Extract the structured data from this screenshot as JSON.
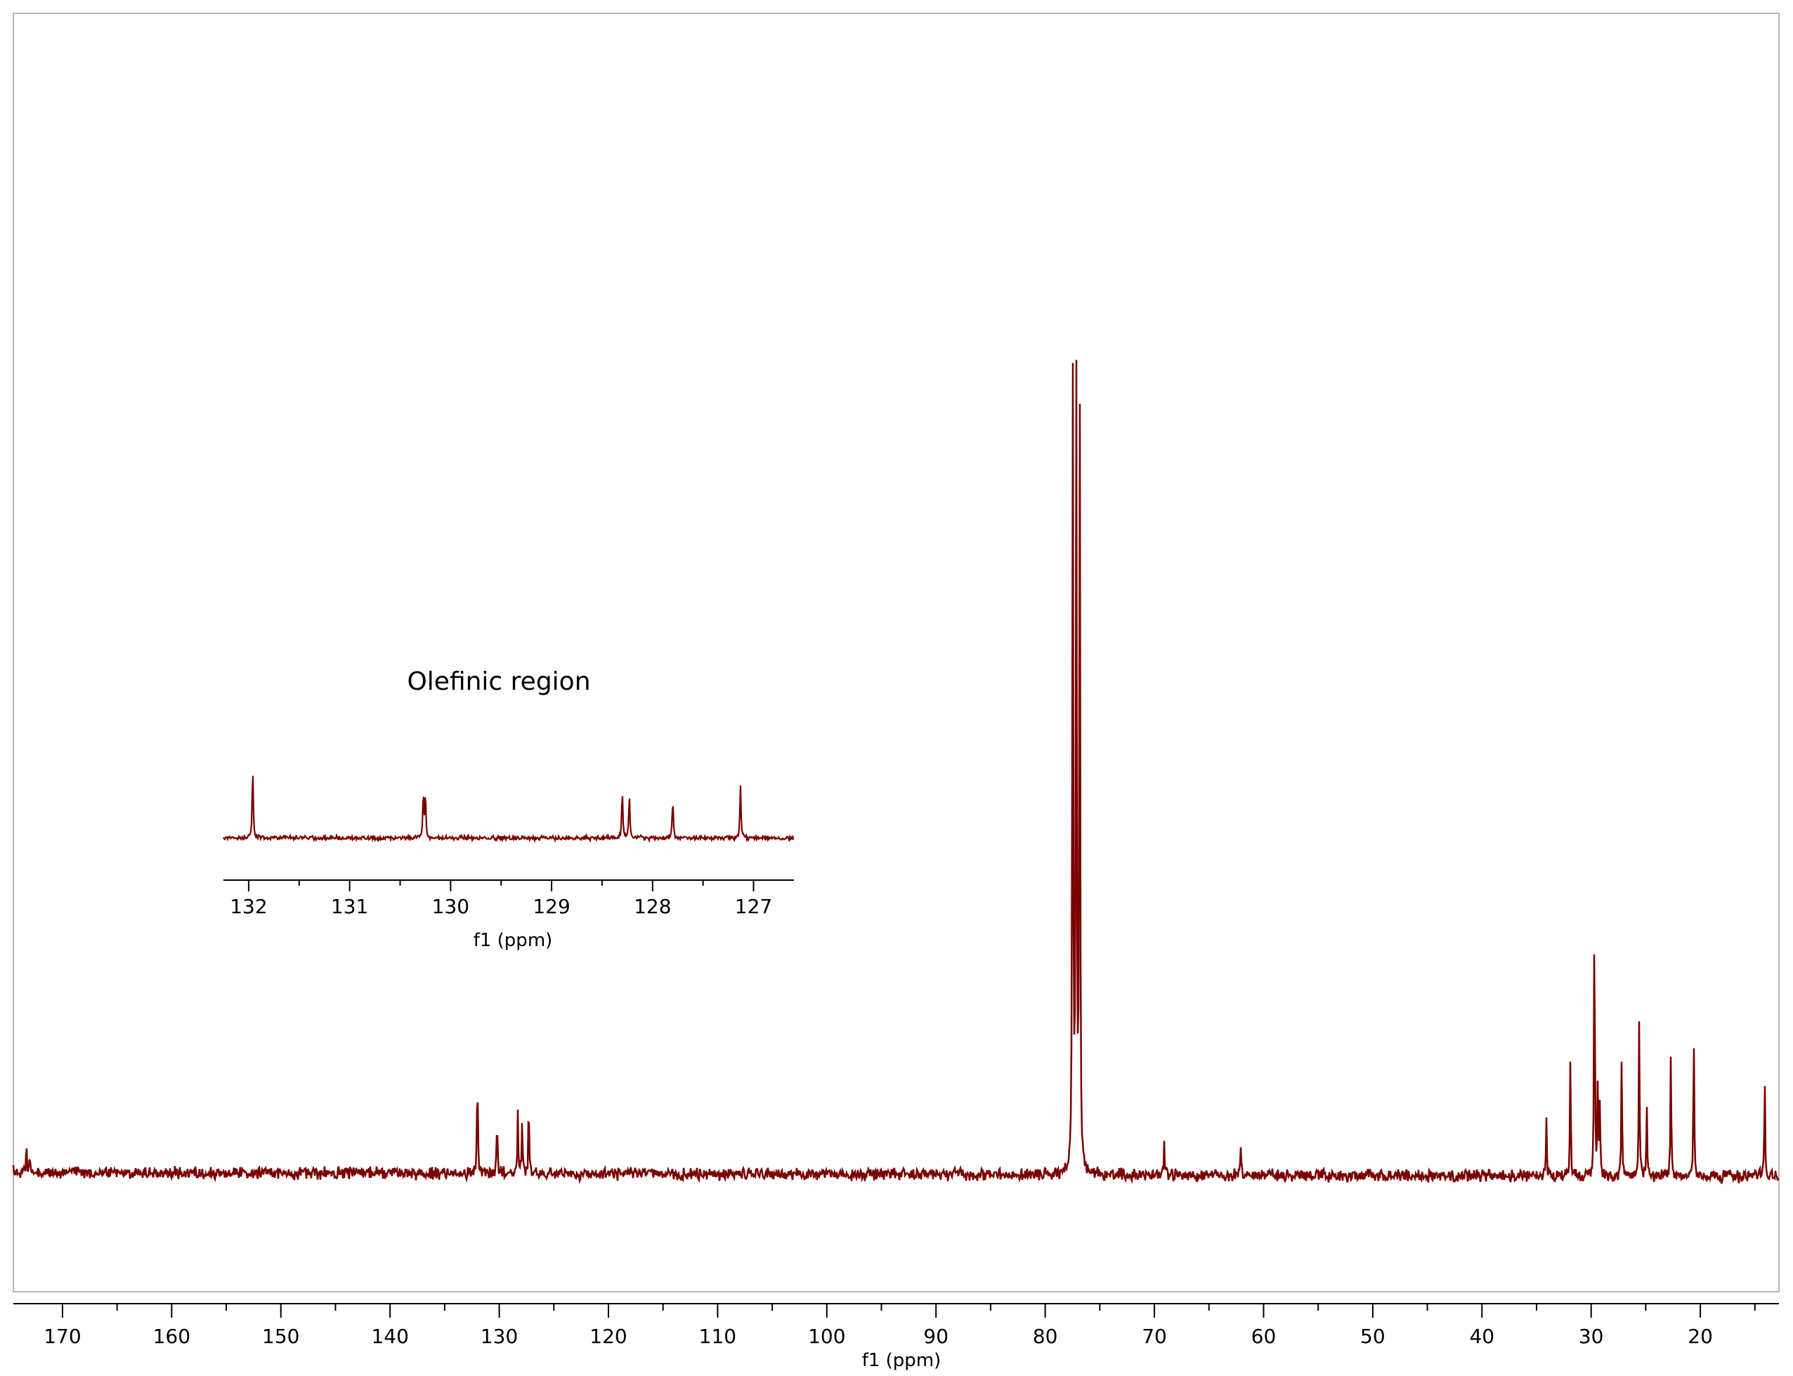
{
  "chart_data": [
    {
      "type": "line",
      "title": "",
      "xlabel": "f1 (ppm)",
      "ylabel": "",
      "xlim": [
        174.5,
        12.8
      ],
      "x_reversed": true,
      "x_ticks": [
        170,
        160,
        150,
        140,
        130,
        120,
        110,
        100,
        90,
        80,
        70,
        60,
        50,
        40,
        30,
        20
      ],
      "grid": false,
      "series": [
        {
          "color": "#7a0000",
          "peaks": [
            {
              "x": 173.3,
              "height": 0.03
            },
            {
              "x": 173.0,
              "height": 0.025
            },
            {
              "x": 132.0,
              "height": 0.117
            },
            {
              "x": 130.2,
              "height": 0.064
            },
            {
              "x": 128.3,
              "height": 0.075
            },
            {
              "x": 127.9,
              "height": 0.068
            },
            {
              "x": 127.3,
              "height": 0.083
            },
            {
              "x": 77.48,
              "height": 1.0
            },
            {
              "x": 77.16,
              "height": 1.01
            },
            {
              "x": 76.84,
              "height": 0.99
            },
            {
              "x": 69.1,
              "height": 0.034
            },
            {
              "x": 62.1,
              "height": 0.039
            },
            {
              "x": 34.1,
              "height": 0.067
            },
            {
              "x": 31.9,
              "height": 0.139
            },
            {
              "x": 29.7,
              "height": 0.315
            },
            {
              "x": 29.4,
              "height": 0.1
            },
            {
              "x": 29.2,
              "height": 0.08
            },
            {
              "x": 27.2,
              "height": 0.142
            },
            {
              "x": 25.6,
              "height": 0.185
            },
            {
              "x": 24.9,
              "height": 0.085
            },
            {
              "x": 22.7,
              "height": 0.148
            },
            {
              "x": 20.6,
              "height": 0.162
            },
            {
              "x": 14.1,
              "height": 0.112
            }
          ]
        }
      ]
    },
    {
      "type": "line",
      "title": "Olefinic region",
      "xlabel": "f1 (ppm)",
      "ylabel": "",
      "xlim": [
        132.25,
        126.6
      ],
      "x_reversed": true,
      "x_ticks": [
        132,
        131,
        130,
        129,
        128,
        127
      ],
      "grid": false,
      "series": [
        {
          "color": "#7a0000",
          "peaks": [
            {
              "x": 131.96,
              "height": 0.096
            },
            {
              "x": 130.27,
              "height": 0.062
            },
            {
              "x": 130.25,
              "height": 0.06
            },
            {
              "x": 128.3,
              "height": 0.062
            },
            {
              "x": 128.23,
              "height": 0.058
            },
            {
              "x": 127.8,
              "height": 0.055
            },
            {
              "x": 127.13,
              "height": 0.07
            }
          ]
        }
      ]
    }
  ]
}
